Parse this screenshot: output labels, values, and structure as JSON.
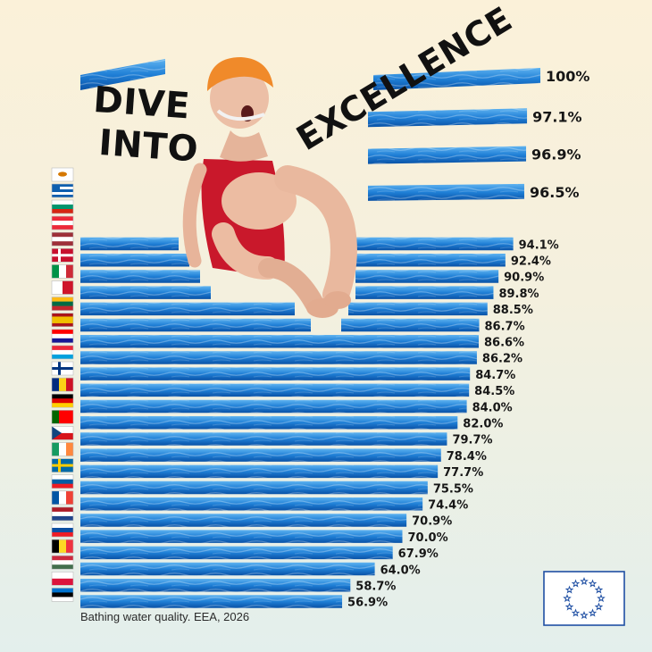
{
  "headline": {
    "line1": "DIVE",
    "line2": "INTO",
    "line3": "EXCELLENCE"
  },
  "caption": "Bathing water quality. EEA, 2026",
  "colors": {
    "water_dark": "#0a52a6",
    "water_mid": "#1f7fd6",
    "water_light": "#5fb3f0",
    "eu_blue": "#1f4fa3",
    "eu_star": "#ffd200",
    "swimsuit": "#c9182b",
    "cap": "#f08a2a"
  },
  "chart_data": {
    "type": "bar",
    "orientation": "horizontal",
    "unit": "%",
    "xlim": [
      0,
      100
    ],
    "categories": [
      "Cyprus",
      "Greece",
      "Bulgaria",
      "Austria",
      "Latvia",
      "Denmark",
      "Italy",
      "Malta",
      "Lithuania",
      "Spain",
      "Croatia",
      "Luxembourg",
      "Finland",
      "Romania",
      "Germany",
      "Portugal",
      "Czechia",
      "Ireland",
      "Sweden",
      "Slovenia",
      "France",
      "Netherlands",
      "Slovakia",
      "Belgium",
      "Hungary",
      "Poland",
      "Estonia"
    ],
    "values": [
      100,
      97.1,
      96.9,
      96.5,
      94.1,
      92.4,
      90.9,
      89.8,
      88.5,
      86.7,
      86.6,
      86.2,
      84.7,
      84.5,
      84.0,
      82.0,
      79.7,
      78.4,
      77.7,
      75.5,
      74.4,
      70.9,
      70.0,
      67.9,
      64.0,
      58.7,
      56.9
    ],
    "labels": [
      "100%",
      "97.1%",
      "96.9%",
      "96.5%",
      "94.1%",
      "92.4%",
      "90.9%",
      "89.8%",
      "88.5%",
      "86.7%",
      "86.6%",
      "86.2%",
      "84.7%",
      "84.5%",
      "84.0%",
      "82.0%",
      "79.7%",
      "78.4%",
      "77.7%",
      "75.5%",
      "74.4%",
      "70.9%",
      "70.0%",
      "67.9%",
      "64.0%",
      "58.7%",
      "56.9%"
    ],
    "flags": [
      {
        "country": "Cyprus",
        "stripes": [
          "#ffffff"
        ],
        "dir": "h",
        "emblem": "#d57800"
      },
      {
        "country": "Greece",
        "stripes": [
          "#0d5eaf",
          "#ffffff",
          "#0d5eaf",
          "#ffffff",
          "#0d5eaf"
        ],
        "dir": "h",
        "canton": "#0d5eaf"
      },
      {
        "country": "Bulgaria",
        "stripes": [
          "#ffffff",
          "#00966e",
          "#d62612"
        ],
        "dir": "h"
      },
      {
        "country": "Austria",
        "stripes": [
          "#ed2939",
          "#ffffff",
          "#ed2939"
        ],
        "dir": "h"
      },
      {
        "country": "Latvia",
        "stripes": [
          "#9e3039",
          "#ffffff",
          "#9e3039"
        ],
        "dir": "h"
      },
      {
        "country": "Denmark",
        "stripes": [
          "#c8102e"
        ],
        "dir": "h",
        "cross": "#ffffff"
      },
      {
        "country": "Italy",
        "stripes": [
          "#009246",
          "#ffffff",
          "#ce2b37"
        ],
        "dir": "v"
      },
      {
        "country": "Malta",
        "stripes": [
          "#ffffff",
          "#cf142b"
        ],
        "dir": "v"
      },
      {
        "country": "Lithuania",
        "stripes": [
          "#fdb913",
          "#006a44",
          "#c1272d"
        ],
        "dir": "h"
      },
      {
        "country": "Spain",
        "stripes": [
          "#aa151b",
          "#f1bf00",
          "#f1bf00",
          "#aa151b"
        ],
        "dir": "h"
      },
      {
        "country": "Croatia",
        "stripes": [
          "#ff0000",
          "#ffffff",
          "#171796"
        ],
        "dir": "h"
      },
      {
        "country": "Luxembourg",
        "stripes": [
          "#ed2939",
          "#ffffff",
          "#00a1de"
        ],
        "dir": "h"
      },
      {
        "country": "Finland",
        "stripes": [
          "#ffffff"
        ],
        "dir": "h",
        "cross": "#003580"
      },
      {
        "country": "Romania",
        "stripes": [
          "#002b7f",
          "#fcd116",
          "#ce1126"
        ],
        "dir": "v"
      },
      {
        "country": "Germany",
        "stripes": [
          "#000000",
          "#dd0000",
          "#ffce00"
        ],
        "dir": "h"
      },
      {
        "country": "Portugal",
        "stripes": [
          "#006600",
          "#ff0000",
          "#ff0000"
        ],
        "dir": "v"
      },
      {
        "country": "Czechia",
        "stripes": [
          "#ffffff",
          "#d7141a"
        ],
        "dir": "h",
        "triangle": "#11457e"
      },
      {
        "country": "Ireland",
        "stripes": [
          "#169b62",
          "#ffffff",
          "#ff883e"
        ],
        "dir": "v"
      },
      {
        "country": "Sweden",
        "stripes": [
          "#006aa7"
        ],
        "dir": "h",
        "cross": "#fecc00"
      },
      {
        "country": "Slovenia",
        "stripes": [
          "#ffffff",
          "#005da4",
          "#ed1c24"
        ],
        "dir": "h"
      },
      {
        "country": "France",
        "stripes": [
          "#0055a4",
          "#ffffff",
          "#ef4135"
        ],
        "dir": "v"
      },
      {
        "country": "Netherlands",
        "stripes": [
          "#ae1c28",
          "#ffffff",
          "#21468b"
        ],
        "dir": "h"
      },
      {
        "country": "Slovakia",
        "stripes": [
          "#ffffff",
          "#0b4ea2",
          "#ee1c25"
        ],
        "dir": "h"
      },
      {
        "country": "Belgium",
        "stripes": [
          "#000000",
          "#fdda24",
          "#ef3340"
        ],
        "dir": "v"
      },
      {
        "country": "Hungary",
        "stripes": [
          "#cd2a3e",
          "#ffffff",
          "#436f4d"
        ],
        "dir": "h"
      },
      {
        "country": "Poland",
        "stripes": [
          "#ffffff",
          "#dc143c"
        ],
        "dir": "h"
      },
      {
        "country": "Estonia",
        "stripes": [
          "#0072ce",
          "#000000",
          "#ffffff"
        ],
        "dir": "h"
      }
    ]
  }
}
